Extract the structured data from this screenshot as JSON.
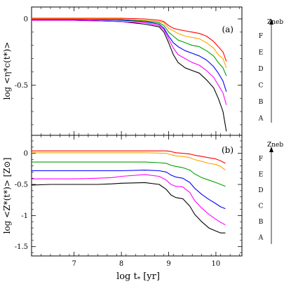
{
  "figure": {
    "xlabel": "log t",
    "xlabel_sub": "*",
    "xlabel_unit": "[yr]"
  },
  "colors": {
    "A": "#000000",
    "B": "#ff00ff",
    "C": "#0000ff",
    "D": "#00a000",
    "E": "#ffa500",
    "F": "#ff0000"
  },
  "chart_data": [
    {
      "type": "line",
      "panel_label": "(a)",
      "ylabel": "log <η*c(t*)>",
      "xlim": [
        6.1,
        10.55
      ],
      "ylim": [
        -0.88,
        0.09
      ],
      "xticks": [
        "7",
        "8",
        "9",
        "10"
      ],
      "yticks": [
        "0",
        "-0.5"
      ],
      "ytick_values": [
        0,
        -0.5
      ],
      "xtick_values": [
        7,
        8,
        9,
        10
      ],
      "side_labels": [
        "F",
        "E",
        "D",
        "C",
        "B",
        "A"
      ],
      "side_axis_label": "Zneb",
      "series": [
        {
          "name": "A",
          "x": [
            6.1,
            7,
            8,
            8.5,
            8.8,
            8.9,
            9.0,
            9.1,
            9.2,
            9.35,
            9.5,
            9.65,
            9.8,
            9.95,
            10.05,
            10.15,
            10.22
          ],
          "y": [
            -0.01,
            -0.01,
            -0.02,
            -0.04,
            -0.06,
            -0.1,
            -0.18,
            -0.27,
            -0.33,
            -0.37,
            -0.39,
            -0.41,
            -0.46,
            -0.52,
            -0.6,
            -0.7,
            -0.85
          ]
        },
        {
          "name": "B",
          "x": [
            6.1,
            7,
            8,
            8.5,
            8.8,
            8.9,
            9.0,
            9.1,
            9.2,
            9.35,
            9.5,
            9.65,
            9.8,
            9.95,
            10.05,
            10.15,
            10.22
          ],
          "y": [
            -0.01,
            -0.01,
            -0.02,
            -0.03,
            -0.05,
            -0.08,
            -0.15,
            -0.22,
            -0.27,
            -0.3,
            -0.33,
            -0.35,
            -0.39,
            -0.44,
            -0.5,
            -0.56,
            -0.65
          ]
        },
        {
          "name": "C",
          "x": [
            6.1,
            7,
            8,
            8.5,
            8.8,
            8.9,
            9.0,
            9.1,
            9.2,
            9.35,
            9.5,
            9.65,
            9.8,
            9.95,
            10.05,
            10.15,
            10.22
          ],
          "y": [
            -0.005,
            -0.005,
            -0.01,
            -0.02,
            -0.04,
            -0.07,
            -0.13,
            -0.18,
            -0.21,
            -0.24,
            -0.26,
            -0.28,
            -0.31,
            -0.36,
            -0.41,
            -0.47,
            -0.55
          ]
        },
        {
          "name": "D",
          "x": [
            6.1,
            7,
            8,
            8.5,
            8.8,
            8.9,
            9.0,
            9.1,
            9.2,
            9.35,
            9.5,
            9.65,
            9.8,
            9.95,
            10.05,
            10.15,
            10.22
          ],
          "y": [
            0,
            0,
            -0.005,
            -0.015,
            -0.03,
            -0.05,
            -0.1,
            -0.13,
            -0.16,
            -0.18,
            -0.2,
            -0.21,
            -0.24,
            -0.28,
            -0.33,
            -0.37,
            -0.43
          ]
        },
        {
          "name": "E",
          "x": [
            6.1,
            7,
            8,
            8.5,
            8.8,
            8.9,
            9.0,
            9.1,
            9.2,
            9.35,
            9.5,
            9.65,
            9.8,
            9.95,
            10.05,
            10.15,
            10.22
          ],
          "y": [
            0,
            0,
            0,
            -0.01,
            -0.02,
            -0.03,
            -0.07,
            -0.09,
            -0.11,
            -0.13,
            -0.14,
            -0.15,
            -0.18,
            -0.22,
            -0.27,
            -0.3,
            -0.37
          ]
        },
        {
          "name": "F",
          "x": [
            6.1,
            7,
            8,
            8.5,
            8.8,
            8.9,
            9.0,
            9.1,
            9.2,
            9.35,
            9.5,
            9.65,
            9.8,
            9.95,
            10.05,
            10.15,
            10.22
          ],
          "y": [
            0.005,
            0.005,
            0.005,
            0,
            -0.01,
            -0.02,
            -0.05,
            -0.07,
            -0.08,
            -0.09,
            -0.1,
            -0.11,
            -0.13,
            -0.17,
            -0.21,
            -0.25,
            -0.32
          ]
        }
      ]
    },
    {
      "type": "line",
      "panel_label": "(b)",
      "ylabel": "log <Z*(t*)> [Z⊙]",
      "xlim": [
        6.1,
        10.55
      ],
      "ylim": [
        -1.65,
        0.29
      ],
      "xticks": [
        "7",
        "8",
        "9",
        "10"
      ],
      "yticks": [
        "0",
        "-0.5",
        "-1",
        "-1.5"
      ],
      "ytick_values": [
        0,
        -0.5,
        -1,
        -1.5
      ],
      "xtick_values": [
        7,
        8,
        9,
        10
      ],
      "side_labels": [
        "F",
        "E",
        "D",
        "C",
        "B",
        "A"
      ],
      "side_axis_label": "Zneb",
      "series": [
        {
          "name": "A",
          "x": [
            6.1,
            6.5,
            7,
            7.5,
            7.8,
            8.0,
            8.5,
            8.8,
            8.95,
            9.05,
            9.15,
            9.3,
            9.45,
            9.55,
            9.7,
            9.85,
            10.0,
            10.1,
            10.2
          ],
          "y": [
            -0.51,
            -0.5,
            -0.5,
            -0.5,
            -0.49,
            -0.48,
            -0.47,
            -0.5,
            -0.58,
            -0.67,
            -0.71,
            -0.73,
            -0.85,
            -0.98,
            -1.1,
            -1.2,
            -1.25,
            -1.28,
            -1.28
          ]
        },
        {
          "name": "B",
          "x": [
            6.1,
            6.5,
            7,
            7.5,
            7.8,
            8.0,
            8.5,
            8.8,
            8.95,
            9.05,
            9.15,
            9.3,
            9.45,
            9.55,
            9.7,
            9.85,
            10.0,
            10.1,
            10.2
          ],
          "y": [
            -0.41,
            -0.41,
            -0.41,
            -0.4,
            -0.39,
            -0.37,
            -0.34,
            -0.37,
            -0.43,
            -0.5,
            -0.53,
            -0.54,
            -0.63,
            -0.76,
            -0.88,
            -0.98,
            -1.06,
            -1.11,
            -1.15
          ]
        },
        {
          "name": "C",
          "x": [
            6.1,
            6.5,
            7,
            7.5,
            7.8,
            8.0,
            8.5,
            8.8,
            8.95,
            9.05,
            9.15,
            9.3,
            9.45,
            9.55,
            9.7,
            9.85,
            10.0,
            10.1,
            10.2
          ],
          "y": [
            -0.28,
            -0.28,
            -0.28,
            -0.28,
            -0.28,
            -0.28,
            -0.27,
            -0.28,
            -0.3,
            -0.35,
            -0.38,
            -0.4,
            -0.47,
            -0.56,
            -0.66,
            -0.74,
            -0.81,
            -0.86,
            -0.89
          ]
        },
        {
          "name": "D",
          "x": [
            6.1,
            6.5,
            7,
            7.5,
            7.8,
            8.0,
            8.5,
            8.8,
            8.95,
            9.05,
            9.15,
            9.3,
            9.45,
            9.55,
            9.7,
            9.85,
            10.0,
            10.1,
            10.2
          ],
          "y": [
            -0.14,
            -0.14,
            -0.14,
            -0.14,
            -0.14,
            -0.14,
            -0.14,
            -0.15,
            -0.16,
            -0.19,
            -0.21,
            -0.23,
            -0.27,
            -0.33,
            -0.39,
            -0.43,
            -0.47,
            -0.5,
            -0.53
          ]
        },
        {
          "name": "E",
          "x": [
            6.1,
            6.5,
            7,
            7.5,
            7.8,
            8.0,
            8.5,
            8.8,
            8.95,
            9.05,
            9.15,
            9.3,
            9.45,
            9.55,
            9.7,
            9.85,
            10.0,
            10.1,
            10.2
          ],
          "y": [
            0.01,
            0.01,
            0.01,
            0.01,
            0.01,
            0.01,
            0.01,
            0.005,
            0,
            -0.02,
            -0.04,
            -0.05,
            -0.07,
            -0.1,
            -0.13,
            -0.16,
            -0.18,
            -0.21,
            -0.27
          ]
        },
        {
          "name": "F",
          "x": [
            6.1,
            6.5,
            7,
            7.5,
            7.8,
            8.0,
            8.5,
            8.8,
            8.95,
            9.05,
            9.15,
            9.3,
            9.45,
            9.55,
            9.7,
            9.85,
            10.0,
            10.1,
            10.2
          ],
          "y": [
            0.04,
            0.04,
            0.04,
            0.04,
            0.04,
            0.04,
            0.04,
            0.04,
            0.04,
            0.03,
            0.01,
            0,
            -0.01,
            -0.03,
            -0.05,
            -0.07,
            -0.09,
            -0.12,
            -0.16
          ]
        }
      ]
    }
  ]
}
